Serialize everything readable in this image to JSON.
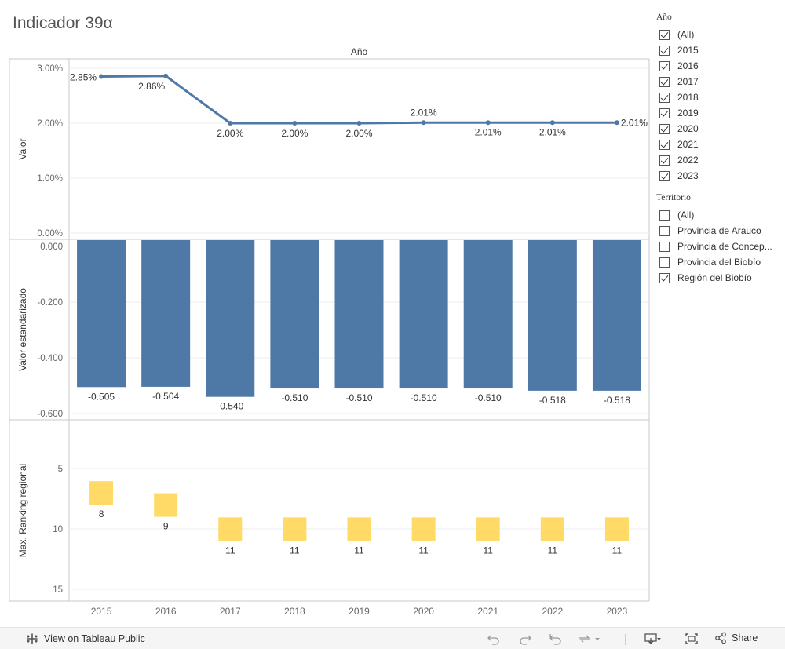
{
  "title": "Indicador 39α",
  "chart_data": [
    {
      "type": "line",
      "title": "Año",
      "ylabel": "Valor",
      "x": [
        "2015",
        "2016",
        "2017",
        "2018",
        "2019",
        "2020",
        "2021",
        "2022",
        "2023"
      ],
      "values": [
        2.85,
        2.86,
        2.0,
        2.0,
        2.0,
        2.01,
        2.01,
        2.01,
        2.01
      ],
      "data_labels": [
        "2.85%",
        "2.86%",
        "2.00%",
        "2.00%",
        "2.00%",
        "2.01%",
        "2.01%",
        "2.01%",
        "2.01%"
      ],
      "ylim": [
        0,
        3.0
      ],
      "yticks": [
        0,
        1,
        2,
        3
      ],
      "ytick_labels": [
        "0.00%",
        "1.00%",
        "2.00%",
        "3.00%"
      ],
      "color": "#4e79a7"
    },
    {
      "type": "bar",
      "ylabel": "Valor estandarizado",
      "x": [
        "2015",
        "2016",
        "2017",
        "2018",
        "2019",
        "2020",
        "2021",
        "2022",
        "2023"
      ],
      "values": [
        -0.505,
        -0.504,
        -0.54,
        -0.51,
        -0.51,
        -0.51,
        -0.51,
        -0.518,
        -0.518
      ],
      "data_labels": [
        "-0.505",
        "-0.504",
        "-0.540",
        "-0.510",
        "-0.510",
        "-0.510",
        "-0.510",
        "-0.518",
        "-0.518"
      ],
      "ylim": [
        -0.63,
        0
      ],
      "yticks": [
        0,
        -0.2,
        -0.4,
        -0.6
      ],
      "ytick_labels": [
        "0.000",
        "-0.200",
        "-0.400",
        "-0.600"
      ],
      "color": "#4e79a7"
    },
    {
      "type": "bar",
      "ylabel": "Max. Ranking regional",
      "x": [
        "2015",
        "2016",
        "2017",
        "2018",
        "2019",
        "2020",
        "2021",
        "2022",
        "2023"
      ],
      "values": [
        8,
        9,
        11,
        11,
        11,
        11,
        11,
        11,
        11
      ],
      "data_labels": [
        "8",
        "9",
        "11",
        "11",
        "11",
        "11",
        "11",
        "11",
        "11"
      ],
      "ylim": [
        3.0,
        16.0
      ],
      "reversed": true,
      "yticks": [
        5,
        10,
        15
      ],
      "ytick_labels": [
        "5",
        "10",
        "15"
      ],
      "color": "#ffda66"
    }
  ],
  "filters": {
    "year": {
      "heading": "Año",
      "items": [
        {
          "label": "(All)",
          "checked": true
        },
        {
          "label": "2015",
          "checked": true
        },
        {
          "label": "2016",
          "checked": true
        },
        {
          "label": "2017",
          "checked": true
        },
        {
          "label": "2018",
          "checked": true
        },
        {
          "label": "2019",
          "checked": true
        },
        {
          "label": "2020",
          "checked": true
        },
        {
          "label": "2021",
          "checked": true
        },
        {
          "label": "2022",
          "checked": true
        },
        {
          "label": "2023",
          "checked": true
        }
      ]
    },
    "territory": {
      "heading": "Territorio",
      "items": [
        {
          "label": "(All)",
          "checked": false
        },
        {
          "label": "Provincia de Arauco",
          "checked": false
        },
        {
          "label": "Provincia de Concep...",
          "checked": false
        },
        {
          "label": "Provincia del Biobío",
          "checked": false
        },
        {
          "label": "Región del Biobío",
          "checked": true
        }
      ]
    }
  },
  "toolbar": {
    "view_label": "View on Tableau Public",
    "share_label": "Share"
  }
}
